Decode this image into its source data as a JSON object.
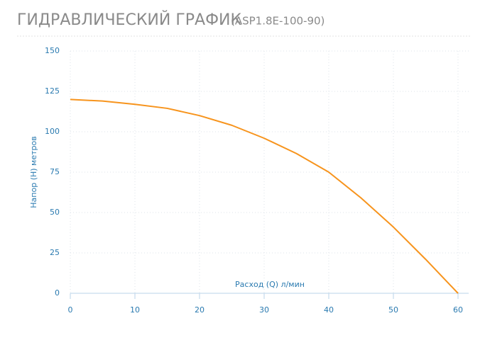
{
  "chart_data": {
    "type": "line",
    "title": "ГИДРАВЛИЧЕСКИЙ ГРАФИК",
    "subtitle": "(ASP1.8E-100-90)",
    "x_label": "Расход (Q) л/мин",
    "y_label": "Напор (H) метров",
    "x": [
      0,
      5,
      10,
      15,
      20,
      25,
      30,
      35,
      40,
      45,
      50,
      55,
      60
    ],
    "series": [
      {
        "color": "#f7941d",
        "values": [
          120,
          119,
          117,
          114.5,
          110,
          104,
          96,
          86.5,
          75,
          59,
          41,
          21,
          0
        ]
      }
    ],
    "xlim": [
      0,
      60
    ],
    "xticks": [
      0,
      10,
      20,
      30,
      40,
      50,
      60
    ],
    "ylim": [
      0,
      150
    ],
    "yticks": [
      0,
      25,
      50,
      75,
      100,
      125,
      150
    ],
    "grid": true
  }
}
